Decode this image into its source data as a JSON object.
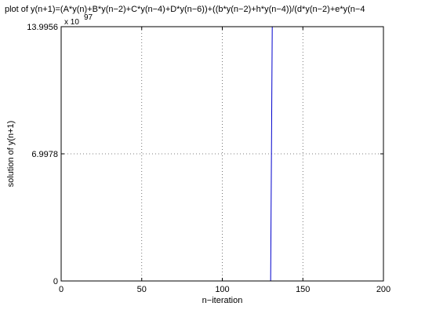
{
  "chart_data": {
    "type": "line",
    "title": "plot of y(n+1)=(A*y(n)+B*y(n−2)+C*y(n−4)+D*y(n−6))+((b*y(n−2)+h*y(n−4))/(d*y(n−2)+e*y(n−4",
    "xlabel": "n−iteration",
    "ylabel": "solution of y(n+1)",
    "exponent_label": "x 10",
    "exponent_power": "97",
    "xlim": [
      0,
      200
    ],
    "ylim": [
      0,
      13.9956
    ],
    "xticks": [
      0,
      50,
      100,
      150,
      200
    ],
    "xtick_labels": [
      "0",
      "50",
      "100",
      "150",
      "200"
    ],
    "yticks": [
      0,
      6.9978,
      13.9956
    ],
    "ytick_labels": [
      "0",
      "6.9978",
      "13.9956"
    ],
    "grid": true,
    "series": [
      {
        "color": "#0000cc",
        "points": [
          [
            0,
            0
          ],
          [
            130,
            0
          ],
          [
            131,
            13.9956
          ]
        ]
      }
    ],
    "colors": {
      "line": "#0000cc",
      "grid": "#555555",
      "axes": "#000000"
    }
  }
}
